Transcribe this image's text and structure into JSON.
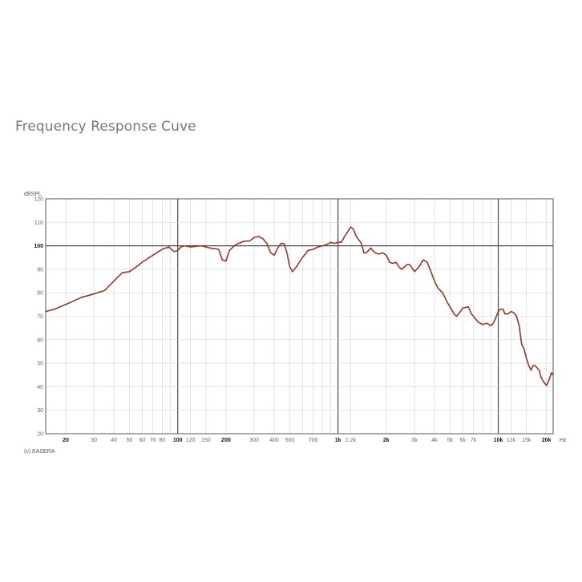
{
  "page": {
    "title": "Frequency Response Cuve"
  },
  "chart_data": {
    "type": "line",
    "title": "",
    "xlabel": "",
    "ylabel": "",
    "y_unit_label": "dBSPL",
    "x_unit_label": "Hz",
    "credit": "(c) EASERA",
    "x_scale": "log",
    "xlim": [
      15,
      22000
    ],
    "ylim": [
      20,
      120
    ],
    "grid": true,
    "y_ticks": [
      20,
      30,
      40,
      50,
      60,
      70,
      80,
      90,
      100,
      110,
      120
    ],
    "y_tick_labels": [
      "20",
      "30",
      "40",
      "50",
      "60",
      "70",
      "80",
      "90",
      "100",
      "110",
      "120"
    ],
    "x_ticks": [
      {
        "value": 20,
        "label": "20",
        "major": false
      },
      {
        "value": 30,
        "label": "30",
        "major": false
      },
      {
        "value": 40,
        "label": "40",
        "major": false
      },
      {
        "value": 50,
        "label": "50",
        "major": false
      },
      {
        "value": 60,
        "label": "60",
        "major": false
      },
      {
        "value": 70,
        "label": "70",
        "major": false
      },
      {
        "value": 80,
        "label": "80",
        "major": false
      },
      {
        "value": 100,
        "label": "100",
        "major": true
      },
      {
        "value": 120,
        "label": "120",
        "major": false
      },
      {
        "value": 150,
        "label": "150",
        "major": false
      },
      {
        "value": 200,
        "label": "200",
        "major": false
      },
      {
        "value": 300,
        "label": "300",
        "major": false
      },
      {
        "value": 400,
        "label": "400",
        "major": false
      },
      {
        "value": 500,
        "label": "500",
        "major": false
      },
      {
        "value": 700,
        "label": "700",
        "major": false
      },
      {
        "value": 1000,
        "label": "1k",
        "major": true
      },
      {
        "value": 1200,
        "label": "1.2k",
        "major": false
      },
      {
        "value": 2000,
        "label": "2k",
        "major": false
      },
      {
        "value": 3000,
        "label": "3k",
        "major": false
      },
      {
        "value": 4000,
        "label": "4k",
        "major": false
      },
      {
        "value": 5000,
        "label": "5k",
        "major": false
      },
      {
        "value": 6000,
        "label": "6k",
        "major": false
      },
      {
        "value": 7000,
        "label": "7k",
        "major": false
      },
      {
        "value": 10000,
        "label": "10k",
        "major": true
      },
      {
        "value": 12000,
        "label": "12k",
        "major": false
      },
      {
        "value": 15000,
        "label": "15k",
        "major": false
      },
      {
        "value": 20000,
        "label": "20k",
        "major": false
      }
    ],
    "colors": {
      "curve_red": "#c0392b",
      "curve_dark": "#3a3a3a",
      "grid_minor": "#d4d4d4",
      "grid_major": "#4a4a4a",
      "frame": "#555555"
    },
    "series": [
      {
        "points": [
          [
            15,
            72
          ],
          [
            17,
            73
          ],
          [
            20,
            75
          ],
          [
            25,
            78
          ],
          [
            30,
            79.5
          ],
          [
            35,
            81
          ],
          [
            40,
            85
          ],
          [
            45,
            88.5
          ],
          [
            50,
            89
          ],
          [
            55,
            91
          ],
          [
            60,
            93
          ],
          [
            70,
            96
          ],
          [
            80,
            98.5
          ],
          [
            88,
            99.5
          ],
          [
            95,
            97.5
          ],
          [
            100,
            98
          ],
          [
            105,
            99.5
          ],
          [
            110,
            100
          ],
          [
            120,
            99.5
          ],
          [
            140,
            100
          ],
          [
            160,
            99
          ],
          [
            180,
            98.5
          ],
          [
            190,
            94
          ],
          [
            200,
            93.5
          ],
          [
            210,
            98
          ],
          [
            230,
            100.5
          ],
          [
            260,
            102
          ],
          [
            280,
            102
          ],
          [
            300,
            103.5
          ],
          [
            320,
            104
          ],
          [
            340,
            103
          ],
          [
            360,
            101
          ],
          [
            380,
            97
          ],
          [
            400,
            96
          ],
          [
            420,
            99
          ],
          [
            440,
            101
          ],
          [
            460,
            101
          ],
          [
            480,
            97
          ],
          [
            500,
            91
          ],
          [
            520,
            89
          ],
          [
            550,
            91
          ],
          [
            600,
            95
          ],
          [
            650,
            98
          ],
          [
            700,
            98.5
          ],
          [
            750,
            99.5
          ],
          [
            800,
            100
          ],
          [
            850,
            100.5
          ],
          [
            900,
            101.5
          ],
          [
            950,
            101
          ],
          [
            1000,
            101.5
          ],
          [
            1050,
            101.5
          ],
          [
            1100,
            104
          ],
          [
            1150,
            106
          ],
          [
            1200,
            108
          ],
          [
            1250,
            107
          ],
          [
            1300,
            104
          ],
          [
            1400,
            101
          ],
          [
            1450,
            97
          ],
          [
            1500,
            97
          ],
          [
            1600,
            99
          ],
          [
            1700,
            97
          ],
          [
            1800,
            96.5
          ],
          [
            1900,
            97
          ],
          [
            2000,
            96
          ],
          [
            2100,
            93
          ],
          [
            2200,
            92.5
          ],
          [
            2300,
            93
          ],
          [
            2400,
            91
          ],
          [
            2500,
            90
          ],
          [
            2700,
            92
          ],
          [
            2800,
            92
          ],
          [
            3000,
            89
          ],
          [
            3200,
            91
          ],
          [
            3400,
            94
          ],
          [
            3600,
            93
          ],
          [
            3800,
            89
          ],
          [
            4000,
            85
          ],
          [
            4200,
            82
          ],
          [
            4500,
            80
          ],
          [
            4800,
            76
          ],
          [
            5000,
            74
          ],
          [
            5300,
            71
          ],
          [
            5500,
            70
          ],
          [
            5800,
            72
          ],
          [
            6000,
            73.5
          ],
          [
            6500,
            74
          ],
          [
            6800,
            71
          ],
          [
            7000,
            70
          ],
          [
            7500,
            67.5
          ],
          [
            8000,
            66.5
          ],
          [
            8500,
            67
          ],
          [
            9000,
            66
          ],
          [
            9300,
            67
          ],
          [
            9600,
            69
          ],
          [
            10000,
            72
          ],
          [
            10300,
            73
          ],
          [
            10700,
            73
          ],
          [
            11000,
            71
          ],
          [
            11500,
            71
          ],
          [
            12000,
            72
          ],
          [
            12500,
            71.5
          ],
          [
            13000,
            70
          ],
          [
            13500,
            66
          ],
          [
            14000,
            58
          ],
          [
            14500,
            56
          ],
          [
            15000,
            52
          ],
          [
            15500,
            49
          ],
          [
            16000,
            47
          ],
          [
            16500,
            49
          ],
          [
            17000,
            49
          ],
          [
            17500,
            48
          ],
          [
            18000,
            47
          ],
          [
            18500,
            44
          ],
          [
            19000,
            42.5
          ],
          [
            19500,
            41.5
          ],
          [
            20000,
            40.5
          ],
          [
            20500,
            42
          ],
          [
            21000,
            44
          ],
          [
            21500,
            46
          ],
          [
            22000,
            45
          ]
        ]
      }
    ]
  }
}
